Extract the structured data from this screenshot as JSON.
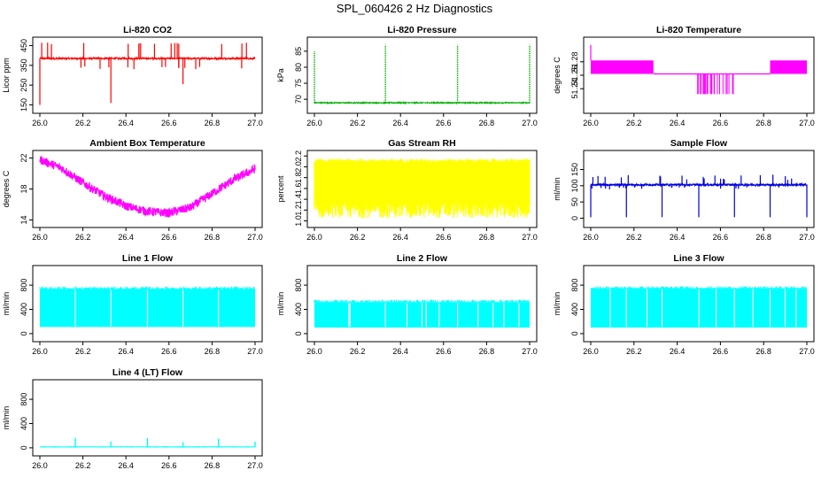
{
  "title": "SPL_060426  2 Hz Diagnostics",
  "chart_data": [
    {
      "id": "co2",
      "type": "line",
      "title": "Li-820 CO2",
      "ylabel": "Licor ppm",
      "color": "#ff0000",
      "xlim": [
        26.0,
        27.0
      ],
      "ylim": [
        130,
        470
      ],
      "yticks": [
        150,
        250,
        350,
        450
      ],
      "pattern": "spiky",
      "base": 385,
      "noise": 4,
      "up": [
        455,
        465
      ],
      "down": [
        330,
        345
      ],
      "deep": [
        {
          "x": 26.0,
          "y": 150
        },
        {
          "x": 26.33,
          "y": 160
        },
        {
          "x": 26.665,
          "y": 255
        }
      ],
      "spikeCount": 30
    },
    {
      "id": "pressure",
      "type": "line",
      "title": "Li-820 Pressure",
      "ylabel": "kPa",
      "color": "#00b000",
      "xlim": [
        26.0,
        27.0
      ],
      "ylim": [
        67,
        88
      ],
      "yticks": [
        70,
        75,
        80,
        85
      ],
      "pattern": "pressure",
      "base": 68.9,
      "noise": 0.15,
      "spikes": [
        {
          "x": 26.0,
          "y": 85
        },
        {
          "x": 26.33,
          "y": 87
        },
        {
          "x": 26.665,
          "y": 87
        },
        {
          "x": 27.0,
          "y": 87
        }
      ]
    },
    {
      "id": "temperature",
      "type": "line",
      "title": "Li-820 Temperature",
      "ylabel": "degrees C",
      "color": "#ff00ff",
      "xlim": [
        26.0,
        27.0
      ],
      "ylim": [
        51.21,
        51.31
      ],
      "yticks": [
        51.24,
        51.26,
        51.28
      ],
      "pattern": "steps",
      "high": [
        51.282,
        51.262
      ],
      "low": 51.262,
      "deep": 51.232,
      "segments": [
        {
          "from": 26.0,
          "to": 26.29,
          "band": "high"
        },
        {
          "from": 26.29,
          "to": 26.83,
          "band": "low"
        },
        {
          "from": 26.83,
          "to": 27.0,
          "band": "high"
        }
      ],
      "flicker": {
        "from": 26.48,
        "to": 26.66
      },
      "peak": {
        "x": 26.0,
        "y": 51.305
      }
    },
    {
      "id": "ambient",
      "type": "line",
      "title": "Ambient Box Temperature",
      "ylabel": "degrees C",
      "color": "#ff00ff",
      "xlim": [
        26.0,
        27.0
      ],
      "ylim": [
        13.6,
        22.4
      ],
      "yticks": [
        14,
        18,
        22
      ],
      "pattern": "curve",
      "points": [
        [
          26.0,
          21.8
        ],
        [
          26.1,
          20.7
        ],
        [
          26.2,
          18.8
        ],
        [
          26.3,
          17.1
        ],
        [
          26.4,
          15.8
        ],
        [
          26.5,
          15.1
        ],
        [
          26.6,
          14.9
        ],
        [
          26.7,
          15.6
        ],
        [
          26.8,
          17.4
        ],
        [
          26.9,
          19.2
        ],
        [
          27.0,
          20.6
        ]
      ],
      "noise": 0.55
    },
    {
      "id": "rh",
      "type": "line",
      "title": "Gas Stream RH",
      "ylabel": "percent",
      "color": "#ffff00",
      "xlim": [
        26.0,
        27.0
      ],
      "ylim": [
        0.96,
        2.22
      ],
      "yticks": [
        1.0,
        1.2,
        1.4,
        1.6,
        1.8,
        2.0,
        2.2
      ],
      "pattern": "band",
      "range": [
        1.05,
        2.15
      ],
      "core": [
        1.35,
        2.08
      ]
    },
    {
      "id": "sampleflow",
      "type": "line",
      "title": "Sample Flow",
      "ylabel": "ml/min",
      "color": "#0000dd",
      "xlim": [
        26.0,
        27.0
      ],
      "ylim": [
        -15,
        195
      ],
      "yticks": [
        0,
        50,
        100,
        150
      ],
      "pattern": "spiky",
      "base": 103,
      "noise": 3,
      "up": [
        118,
        135
      ],
      "down": [
        88,
        95
      ],
      "deep": [
        {
          "x": 26.0,
          "y": 3
        },
        {
          "x": 26.165,
          "y": 3
        },
        {
          "x": 26.33,
          "y": 3
        },
        {
          "x": 26.5,
          "y": 3
        },
        {
          "x": 26.665,
          "y": 3
        },
        {
          "x": 26.83,
          "y": 3
        },
        {
          "x": 27.0,
          "y": 3
        }
      ],
      "spikeCount": 40
    },
    {
      "id": "line1",
      "type": "line",
      "title": "Line 1 Flow",
      "ylabel": "ml/min",
      "color": "#00ffff",
      "xlim": [
        26.0,
        27.0
      ],
      "ylim": [
        -60,
        1050
      ],
      "yticks": [
        0,
        400,
        800
      ],
      "pattern": "block",
      "lo": 110,
      "hi": [
        735,
        775
      ],
      "gaps": [
        26.165,
        26.33,
        26.5,
        26.665,
        26.83
      ]
    },
    {
      "id": "line2",
      "type": "line",
      "title": "Line 2 Flow",
      "ylabel": "ml/min",
      "color": "#00ffff",
      "xlim": [
        26.0,
        27.0
      ],
      "ylim": [
        -60,
        1050
      ],
      "yticks": [
        0,
        400,
        800
      ],
      "pattern": "block",
      "lo": 100,
      "hi": [
        520,
        560
      ],
      "gaps": [
        26.165,
        26.33,
        26.5,
        26.665,
        26.83,
        26.16,
        26.43,
        26.52,
        26.58,
        26.76,
        26.88,
        26.95
      ]
    },
    {
      "id": "line3",
      "type": "line",
      "title": "Line 3 Flow",
      "ylabel": "ml/min",
      "color": "#00ffff",
      "xlim": [
        26.0,
        27.0
      ],
      "ylim": [
        -60,
        1050
      ],
      "yticks": [
        0,
        400,
        800
      ],
      "pattern": "block",
      "lo": 100,
      "hi": [
        745,
        780
      ],
      "gaps": [
        26.165,
        26.33,
        26.5,
        26.665,
        26.83,
        26.09,
        26.26,
        26.58,
        26.75,
        26.9,
        26.95
      ]
    },
    {
      "id": "line4",
      "type": "line",
      "title": "Line 4 (LT) Flow",
      "ylabel": "ml/min",
      "color": "#00ffff",
      "xlim": [
        26.0,
        27.0
      ],
      "ylim": [
        -60,
        1050
      ],
      "yticks": [
        0,
        400,
        800
      ],
      "pattern": "spiky",
      "base": 15,
      "noise": 3,
      "up": [
        20,
        35
      ],
      "down": [
        10,
        12
      ],
      "deep": [],
      "spikes": [
        {
          "x": 26.165,
          "y": 165
        },
        {
          "x": 26.33,
          "y": 105
        },
        {
          "x": 26.5,
          "y": 160
        },
        {
          "x": 26.665,
          "y": 95
        },
        {
          "x": 26.83,
          "y": 150
        },
        {
          "x": 27.0,
          "y": 100
        }
      ],
      "spikeCount": 0
    }
  ],
  "xticks": [
    26.0,
    26.2,
    26.4,
    26.6,
    26.8,
    27.0
  ]
}
